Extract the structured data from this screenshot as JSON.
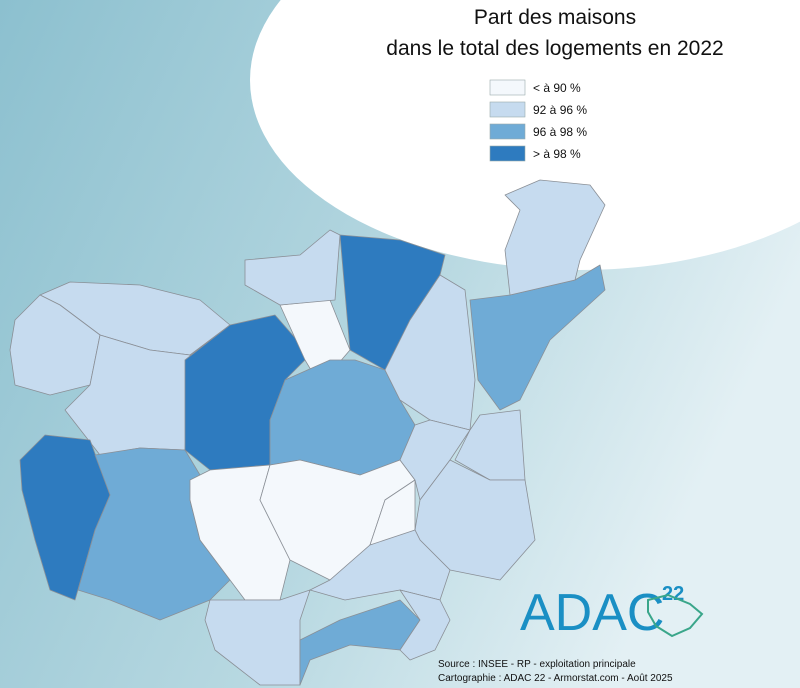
{
  "title": {
    "line1": "Part des maisons",
    "line2": "dans le total des logements en 2022"
  },
  "legend": [
    {
      "label": "< à 90 %",
      "color": "#f4f8fc"
    },
    {
      "label": "92 à 96 %",
      "color": "#c6dbef"
    },
    {
      "label": "96 à 98 %",
      "color": "#6fabd6"
    },
    {
      "label": "> à 98 %",
      "color": "#2e7bbf"
    }
  ],
  "logo": {
    "text": "ADAC",
    "number": "22"
  },
  "source": [
    "Source : INSEE - RP - exploitation principale",
    "Cartographie : ADAC 22 - Armorstat.com - Août 2025"
  ]
}
